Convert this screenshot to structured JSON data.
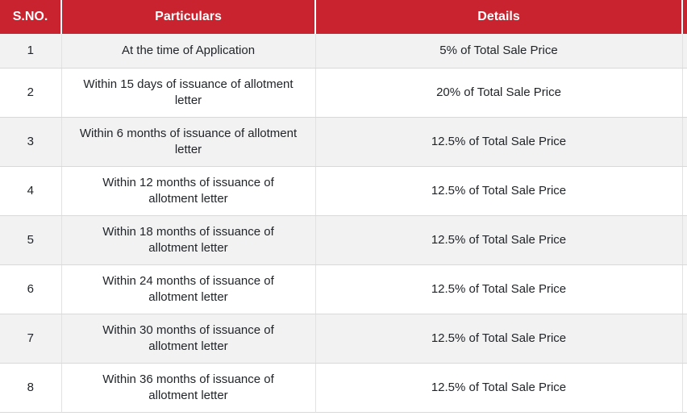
{
  "theme": {
    "header-bg": "#c8232e",
    "header-text": "#ffffff",
    "row-alt-bg": "#f2f2f2",
    "row-bg": "#ffffff",
    "border-color": "#d9d9d9",
    "body-text": "#212529"
  },
  "table": {
    "headers": [
      "S.NO.",
      "Particulars",
      "Details"
    ],
    "rows": [
      {
        "sno": "1",
        "particulars": "At the time of Application",
        "details": "5% of Total Sale Price"
      },
      {
        "sno": "2",
        "particulars": "Within 15 days of issuance of allotment\nletter",
        "details": "20% of Total Sale Price"
      },
      {
        "sno": "3",
        "particulars": "Within 6 months of issuance of allotment\nletter",
        "details": "12.5% of Total Sale Price"
      },
      {
        "sno": "4",
        "particulars": "Within 12 months of issuance of\nallotment letter",
        "details": "12.5% of Total Sale Price"
      },
      {
        "sno": "5",
        "particulars": "Within 18 months of issuance of\nallotment letter",
        "details": "12.5% of Total Sale Price"
      },
      {
        "sno": "6",
        "particulars": "Within 24 months of issuance of\nallotment letter",
        "details": "12.5% of Total Sale Price"
      },
      {
        "sno": "7",
        "particulars": "Within 30 months of issuance of\nallotment letter",
        "details": "12.5% of Total Sale Price"
      },
      {
        "sno": "8",
        "particulars": "Within 36 months of issuance of\nallotment letter",
        "details": "12.5% of Total Sale Price"
      }
    ]
  }
}
